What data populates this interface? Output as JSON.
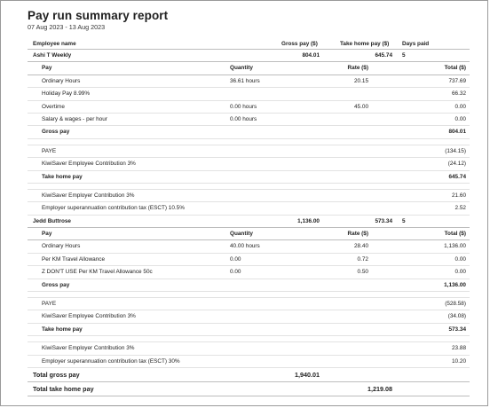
{
  "report": {
    "title": "Pay run summary report",
    "period": "07 Aug 2023 - 13 Aug 2023"
  },
  "columns": {
    "employee_name": "Employee name",
    "gross_pay": "Gross pay ($)",
    "take_home_pay": "Take home pay ($)",
    "days_paid": "Days paid"
  },
  "detail_columns": {
    "pay": "Pay",
    "quantity": "Quantity",
    "rate": "Rate ($)",
    "total": "Total ($)"
  },
  "employees": [
    {
      "name": "Ashi T Weekly",
      "gross_pay": "804.01",
      "take_home_pay": "645.74",
      "days_paid": "5",
      "earnings": [
        {
          "item": "Ordinary Hours",
          "quantity": "36.61 hours",
          "rate": "20.15",
          "total": "737.69"
        },
        {
          "item": "Holiday Pay 8.99%",
          "quantity": "",
          "rate": "",
          "total": "66.32"
        },
        {
          "item": "Overtime",
          "quantity": "0.00 hours",
          "rate": "45.00",
          "total": "0.00"
        },
        {
          "item": "Salary & wages - per hour",
          "quantity": "0.00 hours",
          "rate": "",
          "total": "0.00"
        }
      ],
      "gross_pay_label": "Gross pay",
      "gross_pay_total": "804.01",
      "deductions": [
        {
          "item": "PAYE",
          "total": "(134.15)"
        },
        {
          "item": "KiwiSaver Employee Contribution 3%",
          "total": "(24.12)"
        }
      ],
      "take_home_label": "Take home pay",
      "take_home_total": "645.74",
      "employer": [
        {
          "item": "KiwiSaver Employer Contribution 3%",
          "total": "21.60"
        },
        {
          "item": "Employer superannuation contribution tax (ESCT) 10.5%",
          "total": "2.52"
        }
      ]
    },
    {
      "name": "Jedd Buttrose",
      "gross_pay": "1,136.00",
      "take_home_pay": "573.34",
      "days_paid": "5",
      "earnings": [
        {
          "item": "Ordinary Hours",
          "quantity": "40.00 hours",
          "rate": "28.40",
          "total": "1,136.00"
        },
        {
          "item": "Per KM Travel Allowance",
          "quantity": "0.00",
          "rate": "0.72",
          "total": "0.00"
        },
        {
          "item": "Z DON'T USE Per KM Travel Allowance 50c",
          "quantity": "0.00",
          "rate": "0.50",
          "total": "0.00"
        }
      ],
      "gross_pay_label": "Gross pay",
      "gross_pay_total": "1,136.00",
      "deductions": [
        {
          "item": "PAYE",
          "total": "(528.58)"
        },
        {
          "item": "KiwiSaver Employee Contribution 3%",
          "total": "(34.08)"
        }
      ],
      "take_home_label": "Take home pay",
      "take_home_total": "573.34",
      "employer": [
        {
          "item": "KiwiSaver Employer Contribution 3%",
          "total": "23.88"
        },
        {
          "item": "Employer superannuation contribution tax (ESCT) 30%",
          "total": "10.20"
        }
      ]
    }
  ],
  "totals": {
    "total_gross_label": "Total gross pay",
    "total_gross_value": "1,940.01",
    "total_take_home_label": "Total take home pay",
    "total_take_home_value": "1,219.08"
  }
}
